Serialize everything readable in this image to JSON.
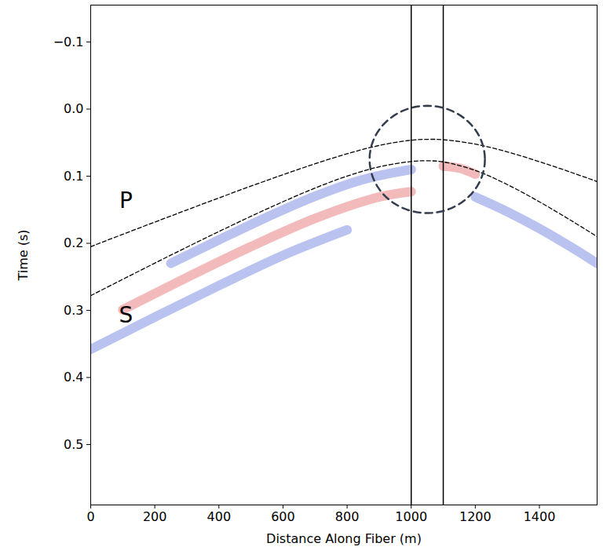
{
  "chart_data": {
    "type": "seismic_section",
    "xlabel": "Distance Along Fiber (m)",
    "ylabel": "Time (s)",
    "xlim": [
      0,
      1580
    ],
    "ylim": [
      -0.155,
      0.59
    ],
    "xticks": [
      0,
      200,
      400,
      600,
      800,
      1000,
      1200,
      1400
    ],
    "yticks": [
      {
        "value": -0.1,
        "label": "−0.1"
      },
      {
        "value": 0,
        "label": "0.0"
      },
      0.1,
      0.2,
      0.3,
      0.4,
      0.5
    ],
    "curves": [
      {
        "name": "P",
        "color": "#000000",
        "line_style": "dashed",
        "x": [
          0,
          100,
          200,
          300,
          400,
          500,
          600,
          700,
          800,
          900,
          1000,
          1060,
          1100,
          1200,
          1300,
          1400,
          1500,
          1580
        ],
        "values": [
          0.205,
          0.1866,
          0.1684,
          0.1503,
          0.1324,
          0.1148,
          0.0978,
          0.0815,
          0.0666,
          0.0542,
          0.0464,
          0.045,
          0.0456,
          0.0522,
          0.0638,
          0.0784,
          0.0944,
          0.108
        ]
      },
      {
        "name": "S",
        "color": "#000000",
        "line_style": "dashed",
        "x": [
          0,
          100,
          200,
          300,
          400,
          500,
          600,
          700,
          800,
          900,
          1000,
          1050,
          1100,
          1200,
          1300,
          1400,
          1500,
          1580
        ],
        "values": [
          0.278,
          0.2537,
          0.2296,
          0.2058,
          0.1825,
          0.1598,
          0.138,
          0.1177,
          0.0999,
          0.086,
          0.0781,
          0.077,
          0.0787,
          0.0914,
          0.1125,
          0.1382,
          0.1664,
          0.19
        ]
      }
    ],
    "labels": [
      {
        "text": "P",
        "x": 110,
        "y": 0.137
      },
      {
        "text": "S",
        "x": 110,
        "y": 0.308
      }
    ],
    "vertical_lines": [
      1000,
      1100
    ],
    "circle": {
      "center_x": 1050,
      "center_y": 0.075,
      "radius_x": 180,
      "radius_y": 0.08,
      "color": "#333d4d",
      "line_style": "dashed"
    },
    "bands": [
      {
        "color": "#3a4fd0",
        "x": [
          250,
          400,
          550,
          700,
          850,
          1000
        ],
        "values": [
          0.23,
          0.195,
          0.161,
          0.13,
          0.105,
          0.09
        ]
      },
      {
        "color": "#d93a3a",
        "x": [
          100,
          300,
          500,
          700,
          900,
          1000
        ],
        "values": [
          0.299,
          0.251,
          0.205,
          0.163,
          0.131,
          0.123
        ]
      },
      {
        "color": "#3a4fd0",
        "x": [
          0,
          200,
          400,
          600,
          800
        ],
        "values": [
          0.358,
          0.31,
          0.263,
          0.218,
          0.18
        ]
      },
      {
        "color": "#3a4fd0",
        "x": [
          1200,
          1300,
          1400,
          1500,
          1580
        ],
        "values": [
          0.131,
          0.153,
          0.178,
          0.206,
          0.23
        ]
      },
      {
        "color": "#d93a3a",
        "x": [
          1100,
          1150,
          1200
        ],
        "values": [
          0.085,
          0.088,
          0.097
        ]
      }
    ]
  }
}
